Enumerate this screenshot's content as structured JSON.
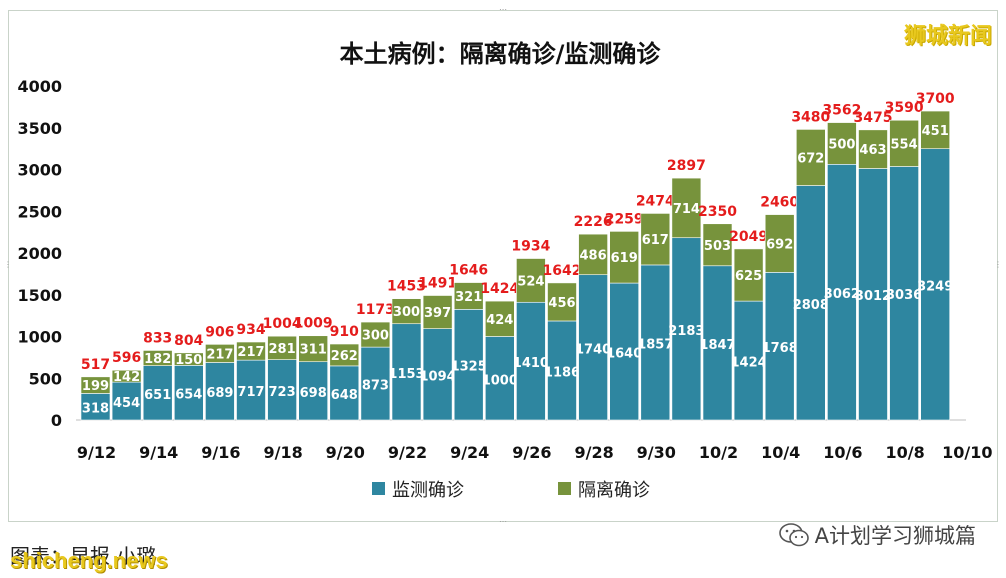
{
  "watermark": "狮城新闻",
  "caption_text": "图表：早报 小璐",
  "site_text": "shicheng.news",
  "wechat_label": "A计划学习狮城篇",
  "colors": {
    "monitor": "#2e86a0",
    "quarantine": "#77933c",
    "total_label": "#e41c1c"
  },
  "chart_data": {
    "type": "bar",
    "stacked": true,
    "title": "本土病例：隔离确诊/监测确诊",
    "xlabel": "",
    "ylabel": "",
    "ylim": [
      0,
      4000
    ],
    "yticks": [
      0,
      500,
      1000,
      1500,
      2000,
      2500,
      3000,
      3500,
      4000
    ],
    "categories": [
      "9/12",
      "9/13",
      "9/14",
      "9/15",
      "9/16",
      "9/17",
      "9/18",
      "9/19",
      "9/20",
      "9/21",
      "9/22",
      "9/23",
      "9/24",
      "9/25",
      "9/26",
      "9/27",
      "9/28",
      "9/29",
      "9/30",
      "10/1",
      "10/2",
      "10/3",
      "10/4",
      "10/5",
      "10/6",
      "10/7",
      "10/8",
      "10/9"
    ],
    "x_tick_labels": [
      "9/12",
      "9/14",
      "9/16",
      "9/18",
      "9/20",
      "9/22",
      "9/24",
      "9/26",
      "9/28",
      "9/30",
      "10/2",
      "10/4",
      "10/6",
      "10/8",
      "10/10"
    ],
    "series": [
      {
        "name": "监测确诊",
        "values": [
          318,
          454,
          651,
          654,
          689,
          717,
          723,
          698,
          648,
          873,
          1153,
          1094,
          1325,
          1000,
          1410,
          1186,
          1740,
          1640,
          1857,
          2183,
          1847,
          1424,
          1768,
          2808,
          3062,
          3012,
          3036,
          3249
        ]
      },
      {
        "name": "隔离确诊",
        "values": [
          199,
          142,
          182,
          150,
          217,
          217,
          281,
          311,
          262,
          300,
          300,
          397,
          321,
          424,
          524,
          456,
          486,
          619,
          617,
          714,
          503,
          625,
          692,
          672,
          500,
          463,
          554,
          451
        ]
      }
    ],
    "totals": [
      517,
      596,
      833,
      804,
      906,
      934,
      1004,
      1009,
      910,
      1173,
      1453,
      1491,
      1646,
      1424,
      1934,
      1642,
      2226,
      2259,
      2474,
      2897,
      2350,
      2049,
      2460,
      3480,
      3562,
      3475,
      3590,
      3700
    ],
    "legend_position": "bottom",
    "grid": false
  }
}
